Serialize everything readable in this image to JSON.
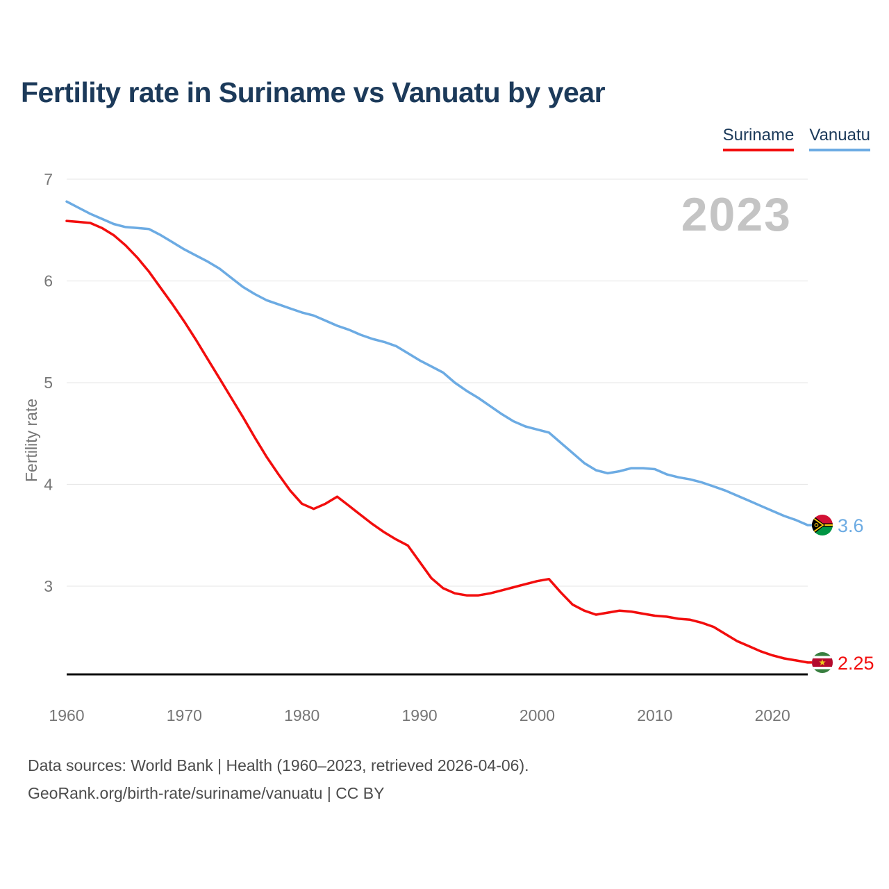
{
  "header": {
    "title": "Fertility rate in Suriname vs Vanuatu by year",
    "watermark": "2023"
  },
  "legend": {
    "items": [
      {
        "label": "Suriname",
        "color": "#f20d0d"
      },
      {
        "label": "Vanuatu",
        "color": "#6cabe3"
      }
    ]
  },
  "axis": {
    "y_title": "Fertility rate"
  },
  "footer": {
    "line1": "Data sources: World Bank | Health (1960–2023, retrieved 2026-04-06).",
    "line2": "GeoRank.org/birth-rate/suriname/vanuatu | CC BY"
  },
  "chart_data": {
    "type": "line",
    "title": "Fertility rate in Suriname vs Vanuatu by year",
    "xlabel": "",
    "ylabel": "Fertility rate",
    "x_start": 1960,
    "x_end": 2023,
    "x_ticks": [
      1960,
      1970,
      1980,
      1990,
      2000,
      2010,
      2020
    ],
    "y_ticks": [
      7,
      6,
      5,
      4,
      3
    ],
    "ylim": [
      2.1,
      7
    ],
    "grid": "horizontal",
    "legend_position": "top-right",
    "series": [
      {
        "name": "Suriname",
        "color": "#f20d0d",
        "end_label": "2.25",
        "values": [
          6.59,
          6.58,
          6.57,
          6.52,
          6.45,
          6.35,
          6.23,
          6.09,
          5.93,
          5.77,
          5.6,
          5.42,
          5.23,
          5.04,
          4.85,
          4.66,
          4.46,
          4.27,
          4.1,
          3.94,
          3.81,
          3.76,
          3.81,
          3.88,
          3.79,
          3.7,
          3.61,
          3.53,
          3.46,
          3.4,
          3.24,
          3.08,
          2.98,
          2.93,
          2.91,
          2.91,
          2.93,
          2.96,
          2.99,
          3.02,
          3.05,
          3.07,
          2.94,
          2.82,
          2.76,
          2.72,
          2.74,
          2.76,
          2.75,
          2.73,
          2.71,
          2.7,
          2.68,
          2.67,
          2.64,
          2.6,
          2.53,
          2.46,
          2.41,
          2.36,
          2.32,
          2.29,
          2.27,
          2.25
        ]
      },
      {
        "name": "Vanuatu",
        "color": "#6cabe3",
        "end_label": "3.6",
        "values": [
          6.78,
          6.72,
          6.66,
          6.61,
          6.56,
          6.53,
          6.52,
          6.51,
          6.45,
          6.38,
          6.31,
          6.25,
          6.19,
          6.12,
          6.03,
          5.94,
          5.87,
          5.81,
          5.77,
          5.73,
          5.69,
          5.66,
          5.61,
          5.56,
          5.52,
          5.47,
          5.43,
          5.4,
          5.36,
          5.29,
          5.22,
          5.16,
          5.1,
          5.0,
          4.92,
          4.85,
          4.77,
          4.69,
          4.62,
          4.57,
          4.54,
          4.51,
          4.41,
          4.31,
          4.21,
          4.14,
          4.11,
          4.13,
          4.16,
          4.16,
          4.15,
          4.1,
          4.07,
          4.05,
          4.02,
          3.98,
          3.94,
          3.89,
          3.84,
          3.79,
          3.74,
          3.69,
          3.65,
          3.6
        ]
      }
    ]
  }
}
